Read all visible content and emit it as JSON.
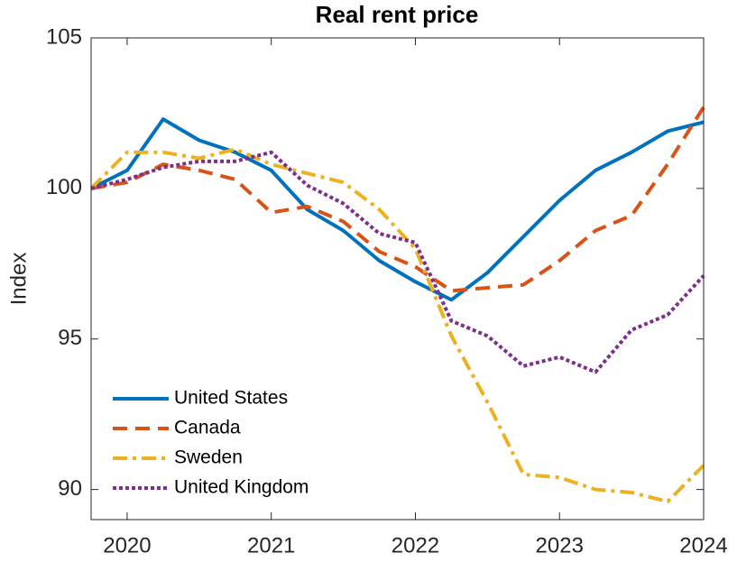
{
  "chart_data": {
    "type": "line",
    "title": "Real rent price",
    "y_label": "Index",
    "x": [
      2019.75,
      2020,
      2020.25,
      2020.5,
      2020.75,
      2021,
      2021.25,
      2021.5,
      2021.75,
      2022,
      2022.25,
      2022.5,
      2022.75,
      2023,
      2023.25,
      2023.5,
      2023.75,
      2024
    ],
    "series": [
      {
        "name": "United States",
        "color": "#0072bd",
        "linestyle": "solid",
        "values": [
          100,
          100.6,
          102.3,
          101.6,
          101.2,
          100.6,
          99.3,
          98.6,
          97.6,
          96.9,
          96.3,
          97.2,
          98.4,
          99.6,
          100.6,
          101.2,
          101.9,
          102.2
        ]
      },
      {
        "name": "Canada",
        "color": "#d95319",
        "linestyle": "dashed",
        "values": [
          100,
          100.2,
          100.8,
          100.6,
          100.3,
          99.2,
          99.4,
          98.9,
          97.9,
          97.4,
          96.6,
          96.7,
          96.8,
          97.6,
          98.6,
          99.1,
          100.8,
          102.7
        ]
      },
      {
        "name": "Sweden",
        "color": "#edb120",
        "linestyle": "dashdot",
        "values": [
          100,
          101.2,
          101.2,
          101.0,
          101.3,
          100.8,
          100.5,
          100.2,
          99.3,
          98.0,
          95.1,
          92.9,
          90.5,
          90.4,
          90.0,
          89.9,
          89.6,
          90.8
        ]
      },
      {
        "name": "United Kingdom",
        "color": "#7e2f8e",
        "linestyle": "dotted",
        "values": [
          100,
          100.3,
          100.7,
          100.9,
          100.9,
          101.2,
          100.1,
          99.5,
          98.5,
          98.2,
          95.6,
          95.1,
          94.1,
          94.4,
          93.9,
          95.3,
          95.8,
          97.1
        ]
      }
    ],
    "xlim": [
      2019.75,
      2024
    ],
    "xticks": [
      2020,
      2021,
      2022,
      2023,
      2024
    ],
    "ylim": [
      89,
      105
    ],
    "yticks": [
      90,
      95,
      100,
      105
    ],
    "grid": false,
    "legend": "lower-left"
  }
}
